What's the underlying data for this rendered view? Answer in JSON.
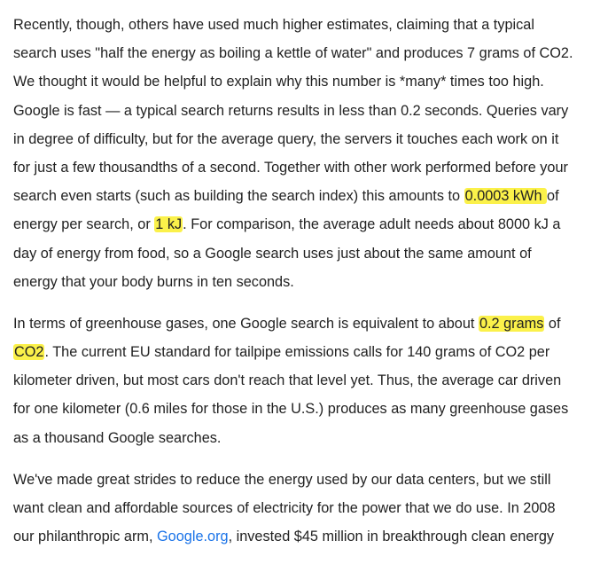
{
  "paragraphs": [
    {
      "lines": [
        [
          {
            "text": "Recently, though, others have used much higher estimates, claiming that a typical"
          }
        ],
        [
          {
            "text": "search uses \"half the energy as boiling a kettle of water\" and produces 7 grams of CO2."
          }
        ],
        [
          {
            "text": "We thought it would be helpful to explain why this number is *many* times too high."
          }
        ],
        [
          {
            "text": "Google is fast — a typical search returns results in less than 0.2 seconds. Queries vary"
          }
        ],
        [
          {
            "text": "in degree of difficulty, but for the average query, the servers it touches each work on it"
          }
        ],
        [
          {
            "text": "for just a few thousandths of a second. Together with other work performed before your"
          }
        ],
        [
          {
            "text": "search even starts (such as building the search index) this amounts to "
          },
          {
            "text": "0.0003 kWh ",
            "highlight": true
          },
          {
            "text": "of"
          }
        ],
        [
          {
            "text": "energy per search, or "
          },
          {
            "text": "1 kJ",
            "highlight": true
          },
          {
            "text": ". For comparison, the average adult needs about 8000 kJ a"
          }
        ],
        [
          {
            "text": "day of energy from food, so a Google search uses just about the same amount of"
          }
        ],
        [
          {
            "text": "energy that your body burns in ten seconds."
          }
        ]
      ]
    },
    {
      "lines": [
        [
          {
            "text": "In terms of greenhouse gases, one Google search is equivalent to about "
          },
          {
            "text": "0.2 grams",
            "highlight": true
          },
          {
            "text": " of"
          }
        ],
        [
          {
            "text": "CO2",
            "highlight": true
          },
          {
            "text": ". The current EU standard for tailpipe emissions calls for 140 grams of CO2 per"
          }
        ],
        [
          {
            "text": "kilometer driven, but most cars don't reach that level yet. Thus, the average car driven"
          }
        ],
        [
          {
            "text": "for one kilometer (0.6 miles for those in the U.S.) produces as many greenhouse gases"
          }
        ],
        [
          {
            "text": "as a thousand Google searches."
          }
        ]
      ]
    },
    {
      "lines": [
        [
          {
            "text": "We've made great strides to reduce the energy used by our data centers, but we still"
          }
        ],
        [
          {
            "text": "want clean and affordable sources of electricity for the power that we do use. In 2008"
          }
        ],
        [
          {
            "text": "our philanthropic arm, "
          },
          {
            "text": "Google.org",
            "link": true
          },
          {
            "text": ", invested $45 million in breakthrough clean energy"
          }
        ]
      ]
    }
  ],
  "colors": {
    "text": "#222222",
    "highlight": "#fbf14a",
    "link": "#1a73e8",
    "background": "#ffffff"
  }
}
